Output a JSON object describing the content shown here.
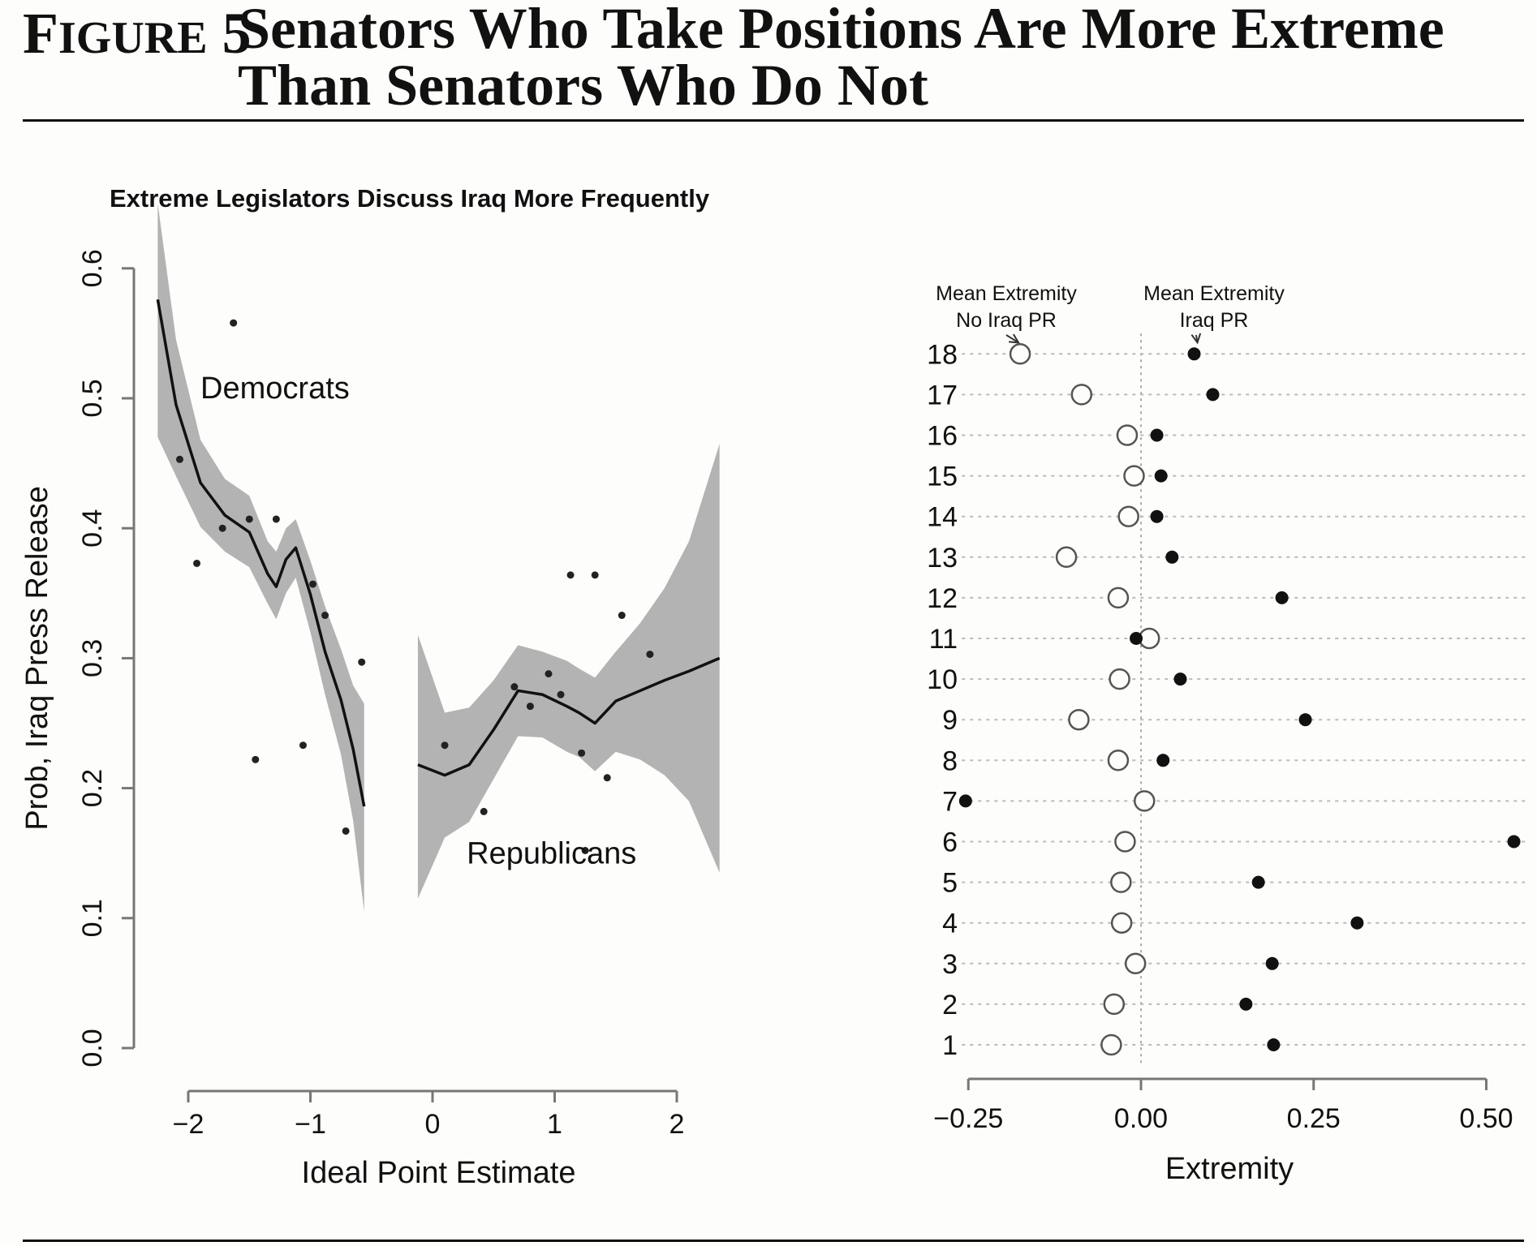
{
  "figure": {
    "label_prefix": "F",
    "label_small": "IGURE",
    "label_number": "5",
    "title": "Senators Who Take Positions Are More Extreme Than Senators Who Do Not"
  },
  "chart_data": [
    {
      "type": "scatter",
      "title": "Extreme Legislators Discuss Iraq More Frequently",
      "xlabel": "Ideal Point Estimate",
      "ylabel": "Prob, Iraq Press Release",
      "xlim": [
        -2.5,
        2.45
      ],
      "ylim": [
        0.0,
        0.6
      ],
      "x_ticks": [
        -2,
        -1,
        0,
        1,
        2
      ],
      "x_tick_labels": [
        "−2",
        "−1",
        "0",
        "1",
        "2"
      ],
      "y_ticks": [
        0.0,
        0.1,
        0.2,
        0.3,
        0.4,
        0.5,
        0.6
      ],
      "y_tick_labels": [
        "0.0",
        "0.1",
        "0.2",
        "0.3",
        "0.4",
        "0.5",
        "0.6"
      ],
      "annotations": [
        {
          "text": "Democrats",
          "x": -1.9,
          "y": 0.5
        },
        {
          "text": "Republicans",
          "x": 0.28,
          "y": 0.142
        }
      ],
      "points": [
        {
          "x": -2.07,
          "y": 0.453
        },
        {
          "x": -1.93,
          "y": 0.373
        },
        {
          "x": -1.72,
          "y": 0.4
        },
        {
          "x": -1.63,
          "y": 0.558
        },
        {
          "x": -1.5,
          "y": 0.407
        },
        {
          "x": -1.45,
          "y": 0.222
        },
        {
          "x": -1.28,
          "y": 0.407
        },
        {
          "x": -1.06,
          "y": 0.233
        },
        {
          "x": -0.98,
          "y": 0.357
        },
        {
          "x": -0.88,
          "y": 0.333
        },
        {
          "x": -0.71,
          "y": 0.167
        },
        {
          "x": -0.58,
          "y": 0.297
        },
        {
          "x": 0.1,
          "y": 0.233
        },
        {
          "x": 0.42,
          "y": 0.182
        },
        {
          "x": 0.67,
          "y": 0.278
        },
        {
          "x": 0.8,
          "y": 0.263
        },
        {
          "x": 0.95,
          "y": 0.288
        },
        {
          "x": 1.05,
          "y": 0.272
        },
        {
          "x": 1.13,
          "y": 0.364
        },
        {
          "x": 1.22,
          "y": 0.227
        },
        {
          "x": 1.25,
          "y": 0.152
        },
        {
          "x": 1.33,
          "y": 0.364
        },
        {
          "x": 1.43,
          "y": 0.208
        },
        {
          "x": 1.55,
          "y": 0.333
        },
        {
          "x": 1.78,
          "y": 0.303
        }
      ],
      "series": [
        {
          "name": "Democrats",
          "fit": [
            [
              -2.25,
              0.576
            ],
            [
              -2.1,
              0.495
            ],
            [
              -1.9,
              0.435
            ],
            [
              -1.7,
              0.41
            ],
            [
              -1.5,
              0.397
            ],
            [
              -1.35,
              0.365
            ],
            [
              -1.28,
              0.355
            ],
            [
              -1.2,
              0.376
            ],
            [
              -1.12,
              0.385
            ],
            [
              -1.0,
              0.349
            ],
            [
              -0.88,
              0.305
            ],
            [
              -0.75,
              0.268
            ],
            [
              -0.65,
              0.23
            ],
            [
              -0.56,
              0.186
            ]
          ],
          "band_upper": [
            [
              -2.25,
              0.65
            ],
            [
              -2.1,
              0.545
            ],
            [
              -1.9,
              0.468
            ],
            [
              -1.7,
              0.438
            ],
            [
              -1.5,
              0.425
            ],
            [
              -1.35,
              0.39
            ],
            [
              -1.28,
              0.382
            ],
            [
              -1.2,
              0.4
            ],
            [
              -1.12,
              0.407
            ],
            [
              -1.0,
              0.375
            ],
            [
              -0.88,
              0.34
            ],
            [
              -0.75,
              0.307
            ],
            [
              -0.65,
              0.279
            ],
            [
              -0.56,
              0.265
            ]
          ],
          "band_lower": [
            [
              -2.25,
              0.47
            ],
            [
              -2.1,
              0.44
            ],
            [
              -1.9,
              0.401
            ],
            [
              -1.7,
              0.382
            ],
            [
              -1.5,
              0.37
            ],
            [
              -1.35,
              0.342
            ],
            [
              -1.28,
              0.33
            ],
            [
              -1.2,
              0.35
            ],
            [
              -1.12,
              0.362
            ],
            [
              -1.0,
              0.32
            ],
            [
              -0.88,
              0.272
            ],
            [
              -0.75,
              0.226
            ],
            [
              -0.65,
              0.175
            ],
            [
              -0.56,
              0.105
            ]
          ]
        },
        {
          "name": "Republicans",
          "fit": [
            [
              -0.12,
              0.218
            ],
            [
              0.1,
              0.21
            ],
            [
              0.3,
              0.218
            ],
            [
              0.5,
              0.245
            ],
            [
              0.7,
              0.275
            ],
            [
              0.9,
              0.272
            ],
            [
              1.1,
              0.263
            ],
            [
              1.2,
              0.258
            ],
            [
              1.33,
              0.25
            ],
            [
              1.5,
              0.267
            ],
            [
              1.7,
              0.275
            ],
            [
              1.9,
              0.283
            ],
            [
              2.1,
              0.29
            ],
            [
              2.35,
              0.3
            ]
          ],
          "band_upper": [
            [
              -0.12,
              0.318
            ],
            [
              0.1,
              0.258
            ],
            [
              0.3,
              0.262
            ],
            [
              0.5,
              0.283
            ],
            [
              0.7,
              0.31
            ],
            [
              0.9,
              0.305
            ],
            [
              1.1,
              0.298
            ],
            [
              1.2,
              0.292
            ],
            [
              1.33,
              0.285
            ],
            [
              1.5,
              0.305
            ],
            [
              1.7,
              0.327
            ],
            [
              1.9,
              0.354
            ],
            [
              2.1,
              0.39
            ],
            [
              2.35,
              0.465
            ]
          ],
          "band_lower": [
            [
              -0.12,
              0.115
            ],
            [
              0.1,
              0.162
            ],
            [
              0.3,
              0.174
            ],
            [
              0.5,
              0.207
            ],
            [
              0.7,
              0.24
            ],
            [
              0.9,
              0.239
            ],
            [
              1.1,
              0.228
            ],
            [
              1.2,
              0.224
            ],
            [
              1.33,
              0.213
            ],
            [
              1.5,
              0.228
            ],
            [
              1.7,
              0.222
            ],
            [
              1.9,
              0.21
            ],
            [
              2.1,
              0.19
            ],
            [
              2.35,
              0.135
            ]
          ]
        }
      ]
    },
    {
      "type": "scatter",
      "title": "",
      "xlabel": "Extremity",
      "ylabel": "",
      "xlim": [
        -0.25,
        0.55
      ],
      "ylim": [
        0.25,
        18.5
      ],
      "x_ticks": [
        -0.25,
        0.0,
        0.25,
        0.5
      ],
      "x_tick_labels": [
        "−0.25",
        "0.00",
        "0.25",
        "0.50"
      ],
      "grid": "horizontal dotted",
      "categories": [
        "1",
        "2",
        "3",
        "4",
        "5",
        "6",
        "7",
        "8",
        "9",
        "10",
        "11",
        "12",
        "13",
        "14",
        "15",
        "16",
        "17",
        "18"
      ],
      "annotations": [
        {
          "text_line1": "Mean Extremity",
          "text_line2": "No Iraq PR",
          "points_to_series": 0
        },
        {
          "text_line1": "Mean Extremity",
          "text_line2": "Iraq PR",
          "points_to_series": 1
        }
      ],
      "series": [
        {
          "marker": "open-circle",
          "values": [
            -0.043,
            -0.039,
            -0.008,
            -0.028,
            -0.029,
            -0.023,
            0.005,
            -0.033,
            -0.09,
            -0.031,
            0.012,
            -0.033,
            -0.108,
            -0.018,
            -0.01,
            -0.02,
            -0.086,
            -0.175
          ]
        },
        {
          "marker": "filled-circle",
          "values": [
            0.192,
            0.152,
            0.19,
            0.313,
            0.17,
            0.54,
            -0.254,
            0.032,
            0.238,
            0.057,
            -0.007,
            0.204,
            0.045,
            0.023,
            0.029,
            0.023,
            0.104,
            0.077
          ]
        }
      ]
    }
  ]
}
